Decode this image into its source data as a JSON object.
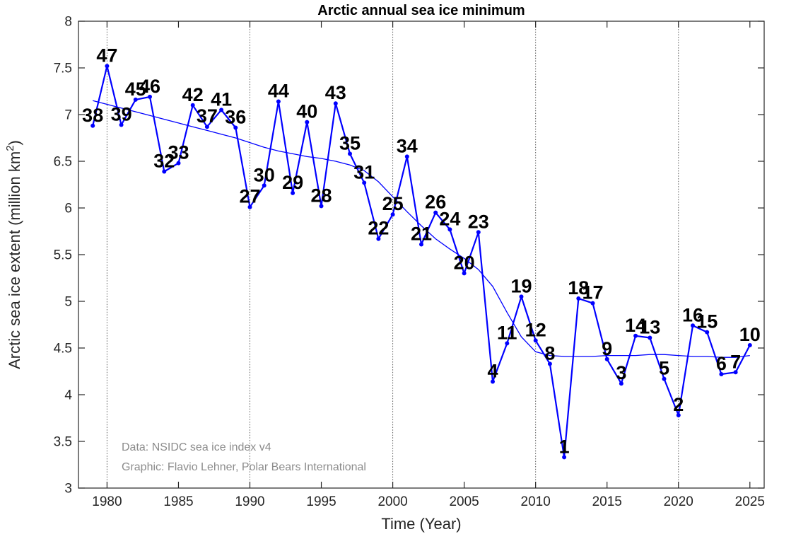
{
  "title": "Arctic annual sea ice minimum",
  "xlabel": "Time (Year)",
  "ylabel": {
    "main": "Arctic sea ice extent (million km",
    "sup": "2",
    "close": ")"
  },
  "annotations": {
    "data_source": "Data: NSIDC sea ice index v4",
    "credit": "Graphic: Flavio Lehner, Polar Bears International"
  },
  "colors": {
    "series_blue": "#0000ff",
    "label_black": "#000000",
    "note_gray": "#8c8c8c",
    "axis_dark": "#262626",
    "grid_gray": "#5a5a5a",
    "background": "#ffffff"
  },
  "chart_data": {
    "type": "line",
    "title": "Arctic annual sea ice minimum",
    "xlabel": "Time (Year)",
    "ylabel": "Arctic sea ice extent (million km^2)",
    "xlim": [
      1978,
      2026
    ],
    "ylim": [
      3,
      8
    ],
    "grid": "vertical dotted at decade years only",
    "legend": "none",
    "x_ticks": [
      1980,
      1985,
      1990,
      1995,
      2000,
      2005,
      2010,
      2015,
      2020,
      2025
    ],
    "x_tick_labels": [
      "1980",
      "1985",
      "1990",
      "1995",
      "2000",
      "2005",
      "2010",
      "2015",
      "2020",
      "2025"
    ],
    "y_ticks": [
      3,
      3.5,
      4,
      4.5,
      5,
      5.5,
      6,
      6.5,
      7,
      7.5,
      8
    ],
    "y_tick_labels": [
      "3",
      "3.5",
      "4",
      "4.5",
      "5",
      "5.5",
      "6",
      "6.5",
      "7",
      "7.5",
      "8"
    ],
    "grid_years": [
      1980,
      1990,
      2000,
      2010,
      2020
    ],
    "series": [
      {
        "name": "annual_minimum",
        "style": "thick line with dot markers, each point labeled with its rank (1 = lowest on record)",
        "x": [
          1979,
          1980,
          1981,
          1982,
          1983,
          1984,
          1985,
          1986,
          1987,
          1988,
          1989,
          1990,
          1991,
          1992,
          1993,
          1994,
          1995,
          1996,
          1997,
          1998,
          1999,
          2000,
          2001,
          2002,
          2003,
          2004,
          2005,
          2006,
          2007,
          2008,
          2009,
          2010,
          2011,
          2012,
          2013,
          2014,
          2015,
          2016,
          2017,
          2018,
          2019,
          2020,
          2021,
          2022,
          2023,
          2024,
          2025
        ],
        "y": [
          6.88,
          7.52,
          6.89,
          7.16,
          7.19,
          6.39,
          6.48,
          7.1,
          6.87,
          7.05,
          6.86,
          6.01,
          6.24,
          7.14,
          6.16,
          6.92,
          6.02,
          7.12,
          6.58,
          6.27,
          5.67,
          5.93,
          6.55,
          5.61,
          5.95,
          5.77,
          5.3,
          5.74,
          4.14,
          4.55,
          5.05,
          4.58,
          4.33,
          3.33,
          5.03,
          4.98,
          4.38,
          4.12,
          4.63,
          4.61,
          4.17,
          3.78,
          4.74,
          4.67,
          4.22,
          4.24,
          4.53
        ],
        "point_labels": [
          "38",
          "47",
          "39",
          "45",
          "46",
          "32",
          "33",
          "42",
          "37",
          "41",
          "36",
          "27",
          "30",
          "44",
          "29",
          "40",
          "28",
          "43",
          "35",
          "31",
          "22",
          "25",
          "34",
          "21",
          "26",
          "24",
          "20",
          "23",
          "4",
          "11",
          "19",
          "12",
          "8",
          "1",
          "18",
          "17",
          "9",
          "3",
          "14",
          "13",
          "5",
          "2",
          "16",
          "15",
          "6",
          "7",
          "10"
        ]
      },
      {
        "name": "smoothed_trend",
        "style": "thin smooth line, no markers",
        "x": [
          1979,
          1980,
          1981,
          1982,
          1983,
          1984,
          1985,
          1986,
          1987,
          1988,
          1989,
          1990,
          1991,
          1992,
          1993,
          1994,
          1995,
          1996,
          1997,
          1998,
          1999,
          2000,
          2001,
          2002,
          2003,
          2004,
          2005,
          2006,
          2007,
          2008,
          2009,
          2010,
          2011,
          2012,
          2013,
          2014,
          2015,
          2016,
          2017,
          2018,
          2019,
          2020,
          2021,
          2022,
          2023,
          2024,
          2025
        ],
        "y": [
          7.15,
          7.11,
          7.07,
          7.03,
          6.99,
          6.95,
          6.91,
          6.87,
          6.83,
          6.79,
          6.75,
          6.7,
          6.65,
          6.61,
          6.58,
          6.55,
          6.53,
          6.5,
          6.46,
          6.4,
          6.28,
          6.12,
          5.96,
          5.81,
          5.67,
          5.56,
          5.46,
          5.34,
          5.16,
          4.88,
          4.62,
          4.46,
          4.42,
          4.41,
          4.41,
          4.41,
          4.42,
          4.42,
          4.42,
          4.43,
          4.43,
          4.42,
          4.41,
          4.41,
          4.4,
          4.4,
          4.42
        ]
      }
    ]
  }
}
